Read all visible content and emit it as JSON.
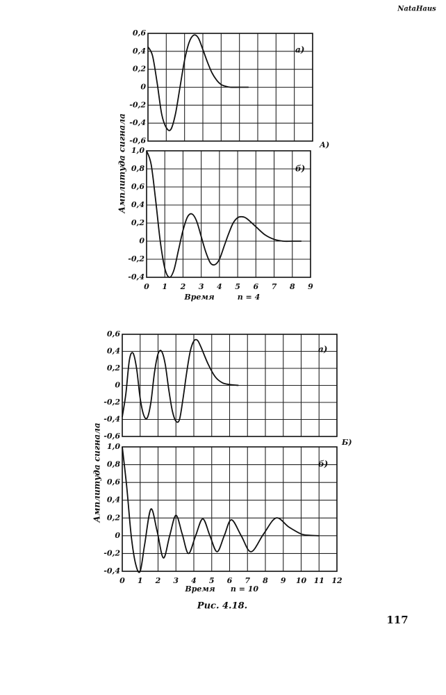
{
  "watermark": "NataHaus",
  "caption": "Рис. 4.18.",
  "page_number": "117",
  "chart_data": [
    {
      "type": "line",
      "annotation": "а)",
      "marker": "А)",
      "ylabel": "Амплитуда сигнала",
      "color": "#111111",
      "grid": true,
      "x": [
        0,
        0.25,
        0.5,
        0.75,
        1.0,
        1.25,
        1.5,
        1.75,
        2.0,
        2.25,
        2.5,
        2.75,
        3.0,
        3.25,
        3.5,
        3.75,
        4.0,
        4.25,
        4.5,
        5.0,
        5.5
      ],
      "values": [
        0.45,
        0.35,
        0.05,
        -0.3,
        -0.45,
        -0.47,
        -0.3,
        0.0,
        0.3,
        0.5,
        0.58,
        0.55,
        0.42,
        0.28,
        0.16,
        0.08,
        0.03,
        0.01,
        0.0,
        0.0,
        0.0
      ],
      "xlim": [
        0,
        9
      ],
      "xticks": [
        0,
        1,
        2,
        3,
        4,
        5,
        6,
        7,
        8,
        9
      ],
      "ylim": [
        -0.6,
        0.6
      ],
      "yticks": [
        {
          "value": 0.6,
          "label": "0,6"
        },
        {
          "value": 0.4,
          "label": "0,4"
        },
        {
          "value": 0.2,
          "label": "0,2"
        },
        0,
        {
          "value": -0.2,
          "label": "-0,2"
        },
        {
          "value": -0.4,
          "label": "-0,4"
        },
        {
          "value": -0.6,
          "label": "-0,6"
        }
      ]
    },
    {
      "type": "line",
      "annotation": "б)",
      "xlabel": "Время",
      "note": "n = 4",
      "color": "#111111",
      "grid": true,
      "x": [
        0,
        0.25,
        0.5,
        0.75,
        1.0,
        1.25,
        1.5,
        1.75,
        2.0,
        2.25,
        2.5,
        2.75,
        3.0,
        3.25,
        3.5,
        3.75,
        4.0,
        4.25,
        4.5,
        4.75,
        5.0,
        5.25,
        5.5,
        6.0,
        6.5,
        7.0,
        7.5,
        8.0,
        8.5
      ],
      "values": [
        1.0,
        0.85,
        0.45,
        0.0,
        -0.3,
        -0.4,
        -0.32,
        -0.1,
        0.12,
        0.27,
        0.3,
        0.22,
        0.05,
        -0.12,
        -0.24,
        -0.26,
        -0.2,
        -0.06,
        0.08,
        0.2,
        0.26,
        0.27,
        0.25,
        0.16,
        0.07,
        0.02,
        0.0,
        0.0,
        0.0
      ],
      "xlim": [
        0,
        9
      ],
      "xticks": [
        0,
        1,
        2,
        3,
        4,
        5,
        6,
        7,
        8,
        9
      ],
      "ylim": [
        -0.4,
        1.0
      ],
      "yticks": [
        {
          "value": 1.0,
          "label": "1,0"
        },
        {
          "value": 0.8,
          "label": "0,8"
        },
        {
          "value": 0.6,
          "label": "0,6"
        },
        {
          "value": 0.4,
          "label": "0,4"
        },
        {
          "value": 0.2,
          "label": "0,2"
        },
        0,
        {
          "value": -0.2,
          "label": "-0,2"
        },
        {
          "value": -0.4,
          "label": "-0,4"
        }
      ]
    },
    {
      "type": "line",
      "annotation": "а)",
      "marker": "Б)",
      "ylabel": "Амплитуда сигнала",
      "color": "#111111",
      "grid": true,
      "x": [
        0,
        0.2,
        0.4,
        0.6,
        0.8,
        1.0,
        1.2,
        1.4,
        1.6,
        1.8,
        2.0,
        2.2,
        2.4,
        2.6,
        2.8,
        3.0,
        3.2,
        3.4,
        3.6,
        3.8,
        4.0,
        4.2,
        4.4,
        4.8,
        5.2,
        5.6,
        6.0,
        6.5
      ],
      "values": [
        -0.37,
        -0.1,
        0.3,
        0.38,
        0.2,
        -0.15,
        -0.35,
        -0.38,
        -0.2,
        0.15,
        0.37,
        0.4,
        0.25,
        -0.05,
        -0.3,
        -0.42,
        -0.4,
        -0.15,
        0.15,
        0.4,
        0.52,
        0.53,
        0.45,
        0.25,
        0.1,
        0.03,
        0.01,
        0.0
      ],
      "xlim": [
        0,
        12
      ],
      "xticks": [
        0,
        1,
        2,
        3,
        4,
        5,
        6,
        7,
        8,
        9,
        10,
        11,
        12
      ],
      "ylim": [
        -0.6,
        0.6
      ],
      "yticks": [
        {
          "value": 0.6,
          "label": "0,6"
        },
        {
          "value": 0.4,
          "label": "0,4"
        },
        {
          "value": 0.2,
          "label": "0,2"
        },
        0,
        {
          "value": -0.2,
          "label": "-0,2"
        },
        {
          "value": -0.4,
          "label": "-0,4"
        },
        {
          "value": -0.6,
          "label": "-0,6"
        }
      ]
    },
    {
      "type": "line",
      "annotation": "б)",
      "xlabel": "Время",
      "note": "n = 10",
      "color": "#111111",
      "grid": true,
      "x": [
        0,
        0.25,
        0.5,
        0.75,
        1.0,
        1.25,
        1.6,
        1.95,
        2.3,
        2.65,
        3.0,
        3.35,
        3.7,
        4.1,
        4.5,
        4.9,
        5.3,
        5.7,
        6.1,
        6.65,
        7.2,
        7.9,
        8.6,
        9.3,
        10.0,
        10.5,
        11.0
      ],
      "values": [
        1.0,
        0.55,
        0.0,
        -0.32,
        -0.4,
        -0.1,
        0.3,
        0.05,
        -0.25,
        0.0,
        0.23,
        0.02,
        -0.2,
        0.0,
        0.19,
        0.0,
        -0.18,
        0.0,
        0.18,
        0.0,
        -0.18,
        0.02,
        0.2,
        0.1,
        0.02,
        0.005,
        0.0
      ],
      "xlim": [
        0,
        12
      ],
      "xticks": [
        0,
        1,
        2,
        3,
        4,
        5,
        6,
        7,
        8,
        9,
        10,
        11,
        12
      ],
      "ylim": [
        -0.4,
        1.0
      ],
      "yticks": [
        {
          "value": 1.0,
          "label": "1,0"
        },
        {
          "value": 0.8,
          "label": "0,8"
        },
        {
          "value": 0.6,
          "label": "0,6"
        },
        {
          "value": 0.4,
          "label": "0,4"
        },
        {
          "value": 0.2,
          "label": "0,2"
        },
        0,
        {
          "value": -0.2,
          "label": "-0,2"
        },
        {
          "value": -0.4,
          "label": "-0,4"
        }
      ]
    }
  ]
}
